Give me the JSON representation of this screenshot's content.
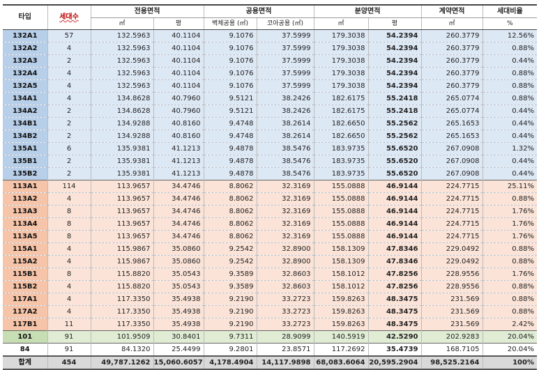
{
  "headers": {
    "type": "타입",
    "units": "세대수",
    "exclusive": "전용면적",
    "common": "공용면적",
    "sale": "분양면적",
    "contract": "계약면적",
    "ratio": "세대비율",
    "sub_m2": "㎡",
    "sub_pyeong": "평",
    "sub_wall": "벽체공용 (㎡)",
    "sub_core": "코아공용 (㎡)",
    "sub_m2_b": "㎡",
    "sub_pyeong_b": "평",
    "sub_m2_c": "㎡",
    "sub_pct": "%"
  },
  "rows": [
    [
      "132A1",
      "57",
      "132.5963",
      "40.1104",
      "9.1076",
      "37.5999",
      "179.3038",
      "54.2394",
      "260.3779",
      "12.56%"
    ],
    [
      "132A2",
      "4",
      "132.5963",
      "40.1104",
      "9.1076",
      "37.5999",
      "179.3038",
      "54.2394",
      "260.3779",
      "0.88%"
    ],
    [
      "132A3",
      "2",
      "132.5963",
      "40.1104",
      "9.1076",
      "37.5999",
      "179.3038",
      "54.2394",
      "260.3779",
      "0.44%"
    ],
    [
      "132A4",
      "4",
      "132.5963",
      "40.1104",
      "9.1076",
      "37.5999",
      "179.3038",
      "54.2394",
      "260.3779",
      "0.88%"
    ],
    [
      "132A5",
      "4",
      "132.5963",
      "40.1104",
      "9.1076",
      "37.5999",
      "179.3038",
      "54.2394",
      "260.3779",
      "0.88%"
    ],
    [
      "134A1",
      "4",
      "134.8628",
      "40.7960",
      "9.5121",
      "38.2426",
      "182.6175",
      "55.2418",
      "265.0774",
      "0.88%"
    ],
    [
      "134A2",
      "2",
      "134.8628",
      "40.7960",
      "9.5121",
      "38.2426",
      "182.6175",
      "55.2418",
      "265.0774",
      "0.44%"
    ],
    [
      "134B1",
      "2",
      "134.9288",
      "40.8160",
      "9.4748",
      "38.2614",
      "182.6650",
      "55.2562",
      "265.1653",
      "0.44%"
    ],
    [
      "134B2",
      "2",
      "134.9288",
      "40.8160",
      "9.4748",
      "38.2614",
      "182.6650",
      "55.2562",
      "265.1653",
      "0.44%"
    ],
    [
      "135A1",
      "6",
      "135.9381",
      "41.1213",
      "9.4878",
      "38.5476",
      "183.9735",
      "55.6520",
      "267.0908",
      "1.32%"
    ],
    [
      "135B1",
      "2",
      "135.9381",
      "41.1213",
      "9.4878",
      "38.5476",
      "183.9735",
      "55.6520",
      "267.0908",
      "0.44%"
    ],
    [
      "135B2",
      "2",
      "135.9381",
      "41.1213",
      "9.4878",
      "38.5476",
      "183.9735",
      "55.6520",
      "267.0908",
      "0.44%"
    ],
    [
      "113A1",
      "114",
      "113.9657",
      "34.4746",
      "8.8062",
      "32.3169",
      "155.0888",
      "46.9144",
      "224.7715",
      "25.11%"
    ],
    [
      "113A2",
      "4",
      "113.9657",
      "34.4746",
      "8.8062",
      "32.3169",
      "155.0888",
      "46.9144",
      "224.7715",
      "0.88%"
    ],
    [
      "113A3",
      "8",
      "113.9657",
      "34.4746",
      "8.8062",
      "32.3169",
      "155.0888",
      "46.9144",
      "224.7715",
      "1.76%"
    ],
    [
      "113A4",
      "8",
      "113.9657",
      "34.4746",
      "8.8062",
      "32.3169",
      "155.0888",
      "46.9144",
      "224.7715",
      "1.76%"
    ],
    [
      "113A5",
      "8",
      "113.9657",
      "34.4746",
      "8.8062",
      "32.3169",
      "155.0888",
      "46.9144",
      "224.7715",
      "1.76%"
    ],
    [
      "115A1",
      "4",
      "115.9867",
      "35.0860",
      "9.2542",
      "32.8900",
      "158.1309",
      "47.8346",
      "229.0492",
      "0.88%"
    ],
    [
      "115A2",
      "4",
      "115.9867",
      "35.0860",
      "9.2542",
      "32.8900",
      "158.1309",
      "47.8346",
      "229.0492",
      "0.88%"
    ],
    [
      "115B1",
      "8",
      "115.8820",
      "35.0543",
      "9.3589",
      "32.8603",
      "158.1012",
      "47.8256",
      "228.9556",
      "1.76%"
    ],
    [
      "115B2",
      "4",
      "115.8820",
      "35.0543",
      "9.3589",
      "32.8603",
      "158.1012",
      "47.8256",
      "228.9556",
      "0.88%"
    ],
    [
      "117A1",
      "4",
      "117.3350",
      "35.4938",
      "9.2190",
      "33.2723",
      "159.8263",
      "48.3475",
      "231.569",
      "0.88%"
    ],
    [
      "117A2",
      "4",
      "117.3350",
      "35.4938",
      "9.2190",
      "33.2723",
      "159.8263",
      "48.3475",
      "231.569",
      "0.88%"
    ],
    [
      "117B1",
      "11",
      "117.3350",
      "35.4938",
      "9.2190",
      "33.2723",
      "159.8263",
      "48.3475",
      "231.569",
      "2.42%"
    ],
    [
      "101",
      "91",
      "101.9509",
      "30.8401",
      "9.7311",
      "28.9099",
      "140.5919",
      "42.5290",
      "202.9283",
      "20.04%"
    ],
    [
      "84",
      "91",
      "84.1320",
      "25.4499",
      "9.2801",
      "23.8571",
      "117.2692",
      "35.4739",
      "168.7105",
      "20.04%"
    ]
  ],
  "row_groups": [
    "blue",
    "blue",
    "blue",
    "blue",
    "blue",
    "blue",
    "blue",
    "blue",
    "blue",
    "blue",
    "blue",
    "blue",
    "orange",
    "orange",
    "orange",
    "orange",
    "orange",
    "orange",
    "orange",
    "orange",
    "orange",
    "orange",
    "orange",
    "orange",
    "green",
    "white"
  ],
  "total": [
    "합계",
    "454",
    "49,787.1262",
    "15,060.6057",
    "4,178.4904",
    "14,117.9898",
    "68,083.6064",
    "20,595.2904",
    "98,525.2164",
    "100%"
  ],
  "colors": {
    "blue_bg": "#dde8f5",
    "blue_type": "#b8cfe9",
    "orange_bg": "#fbe3d7",
    "orange_type": "#f6c4a8",
    "green_bg": "#e0ecd4",
    "green_type": "#c7ddb3",
    "total_bg": "#d9d9d9"
  }
}
